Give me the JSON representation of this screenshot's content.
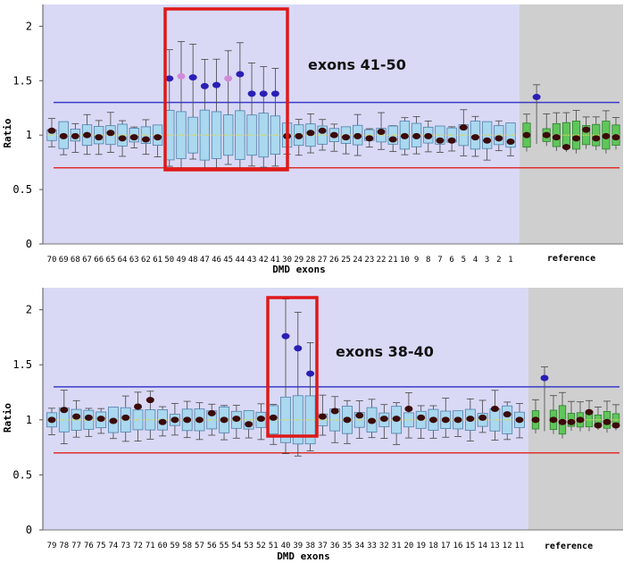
{
  "chart_data": [
    {
      "type": "boxplot",
      "ylabel": "Ratio",
      "xlabel": "DMD exons",
      "ylim": [
        0,
        2.2
      ],
      "yticks": [
        "0",
        "0.5",
        "1",
        "1.5",
        "2"
      ],
      "threshold_upper": 1.3,
      "threshold_lower": 0.7,
      "x_labels": [
        "70",
        "69",
        "68",
        "67",
        "66",
        "65",
        "64",
        "63",
        "62",
        "61",
        "50",
        "49",
        "48",
        "47",
        "46",
        "45",
        "44",
        "43",
        "42",
        "41",
        "30",
        "29",
        "28",
        "27",
        "26",
        "25",
        "24",
        "23",
        "22",
        "21",
        "10",
        "9",
        "8",
        "7",
        "6",
        "5",
        "4",
        "3",
        "2",
        "1"
      ],
      "values": [
        1.04,
        0.99,
        0.99,
        1.0,
        0.98,
        1.02,
        0.97,
        0.98,
        0.96,
        0.98,
        1.52,
        1.54,
        1.53,
        1.45,
        1.46,
        1.52,
        1.56,
        1.38,
        1.38,
        1.38,
        0.99,
        0.99,
        1.02,
        1.04,
        1.0,
        0.98,
        0.99,
        0.97,
        1.03,
        0.96,
        0.99,
        0.99,
        0.99,
        0.95,
        0.95,
        1.07,
        0.98,
        0.95,
        0.97,
        0.94
      ],
      "reference_label": "reference",
      "reference_values": [
        1.0,
        1.35,
        1.0,
        0.98,
        0.89,
        0.97,
        1.05,
        0.97,
        0.99,
        0.98
      ],
      "annotation": "exons 41-50"
    },
    {
      "type": "boxplot",
      "ylabel": "Ratio",
      "xlabel": "DMD exons",
      "ylim": [
        0,
        2.2
      ],
      "yticks": [
        "0",
        "0.5",
        "1",
        "1.5",
        "2"
      ],
      "threshold_upper": 1.3,
      "threshold_lower": 0.7,
      "x_labels": [
        "79",
        "78",
        "77",
        "76",
        "75",
        "74",
        "73",
        "72",
        "71",
        "60",
        "59",
        "58",
        "57",
        "56",
        "55",
        "54",
        "53",
        "52",
        "51",
        "40",
        "39",
        "38",
        "37",
        "36",
        "35",
        "34",
        "33",
        "32",
        "31",
        "20",
        "19",
        "18",
        "17",
        "16",
        "15",
        "14",
        "13",
        "12",
        "11"
      ],
      "values": [
        1.0,
        1.09,
        1.03,
        1.02,
        1.01,
        0.99,
        1.02,
        1.12,
        1.18,
        0.98,
        1.0,
        1.0,
        1.0,
        1.06,
        1.0,
        1.01,
        0.96,
        1.01,
        1.02,
        1.76,
        1.65,
        1.42,
        1.03,
        1.08,
        1.0,
        1.04,
        0.99,
        1.01,
        1.01,
        1.1,
        1.02,
        1.0,
        1.0,
        1.0,
        1.01,
        1.02,
        1.1,
        1.05,
        1.0
      ],
      "reference_label": "reference",
      "reference_values": [
        1.0,
        1.38,
        1.0,
        0.98,
        0.98,
        1.0,
        1.07,
        0.95,
        0.98,
        0.95
      ],
      "annotation": "exons 38-40"
    }
  ]
}
